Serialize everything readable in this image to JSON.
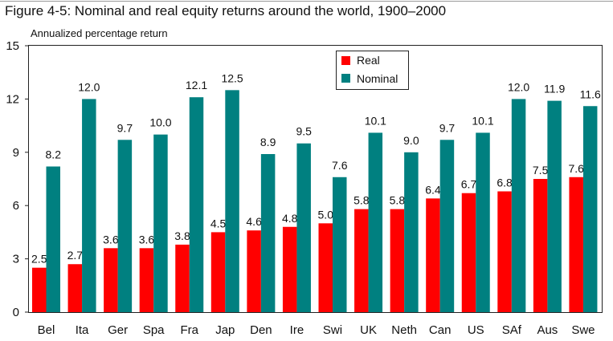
{
  "title": "Figure 4-5: Nominal and real equity returns around the world, 1900–2000",
  "colors": {
    "real": "#ff0000",
    "nominal": "#008080"
  },
  "chart_data": {
    "type": "bar",
    "title": "Figure 4-5: Nominal and real equity returns around the world, 1900–2000",
    "ylabel": "Annualized percentage return",
    "xlabel": "",
    "ylim": [
      0,
      15
    ],
    "yticks": [
      0,
      3,
      6,
      9,
      12,
      15
    ],
    "grid": false,
    "legend": "top-center",
    "categories": [
      "Bel",
      "Ita",
      "Ger",
      "Spa",
      "Fra",
      "Jap",
      "Den",
      "Ire",
      "Swi",
      "UK",
      "Neth",
      "Can",
      "US",
      "SAf",
      "Aus",
      "Swe"
    ],
    "series": [
      {
        "name": "Real",
        "values": [
          2.5,
          2.7,
          3.6,
          3.6,
          3.8,
          4.5,
          4.6,
          4.8,
          5.0,
          5.8,
          5.8,
          6.4,
          6.7,
          6.8,
          7.5,
          7.6
        ]
      },
      {
        "name": "Nominal",
        "values": [
          8.2,
          12.0,
          9.7,
          10.0,
          12.1,
          12.5,
          8.9,
          9.5,
          7.6,
          10.1,
          9.0,
          9.7,
          10.1,
          12.0,
          11.9,
          11.6
        ]
      }
    ]
  }
}
